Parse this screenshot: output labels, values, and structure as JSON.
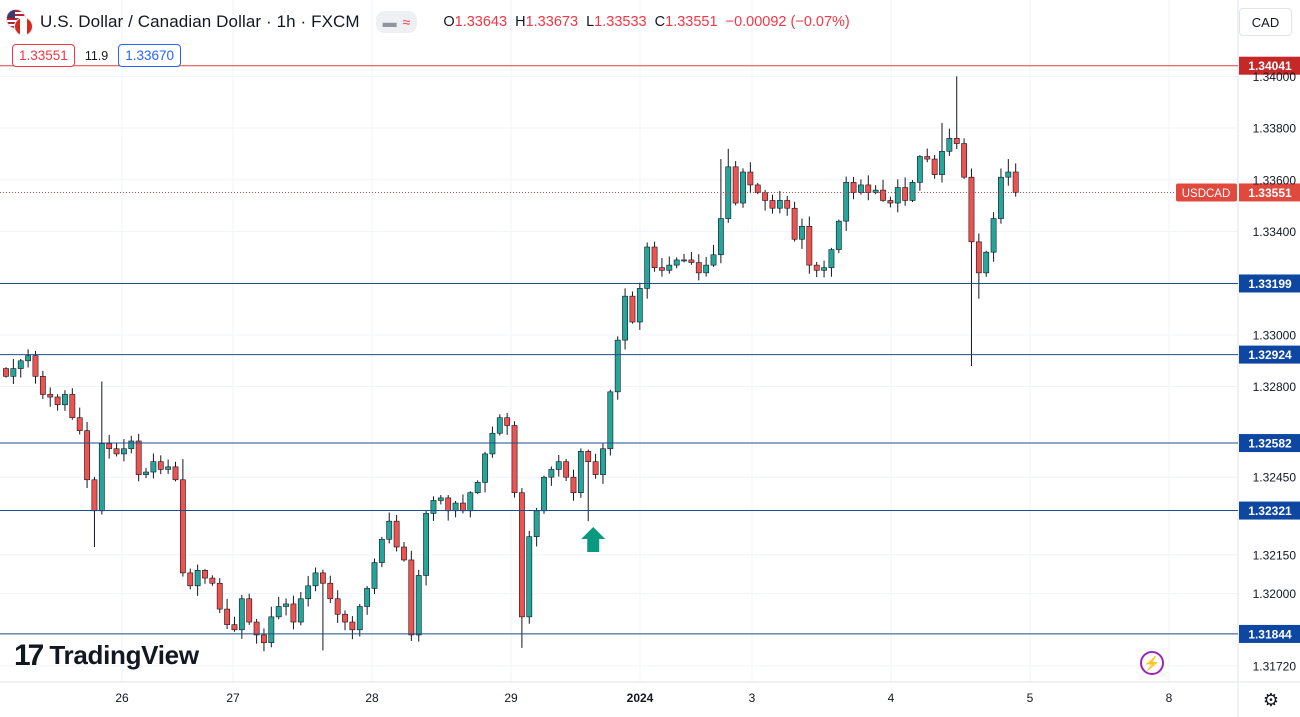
{
  "header": {
    "title": "U.S. Dollar / Canadian Dollar · 1h · FXCM",
    "toggle_minus": "▬",
    "toggle_wave": "≈",
    "open_label": "O",
    "open": "1.33643",
    "high_label": "H",
    "high": "1.33673",
    "low_label": "L",
    "low": "1.33533",
    "close_label": "C",
    "close": "1.33551",
    "change": "−0.00092 (−0.07%)"
  },
  "trade": {
    "sell_price": "1.33551",
    "spread": "11.9",
    "buy_price": "1.33670"
  },
  "currency_button": "CAD",
  "brand": {
    "name": "TradingView"
  },
  "icons": {
    "lightning": "lightning-icon",
    "settings": "gear-icon"
  },
  "colors": {
    "up": "#26a69a",
    "down": "#ef5350",
    "level_line": "#1e4d8c",
    "resistance": "#e04040",
    "arrow": "#089981",
    "last_price": "#e0493d"
  },
  "chart_data": {
    "type": "candlestick",
    "symbol": "USDCAD",
    "last_price": 1.33551,
    "y_ticks": [
      1.3172,
      1.32,
      1.3215,
      1.3245,
      1.328,
      1.33,
      1.334,
      1.336,
      1.338,
      1.34
    ],
    "y_tick_labels": [
      "1.31720",
      "1.32000",
      "1.32150",
      "1.32450",
      "1.32800",
      "1.33000",
      "1.33400",
      "1.33600",
      "1.33800",
      "1.34000"
    ],
    "x_labels": [
      {
        "label": "26",
        "date": "2023-12-26"
      },
      {
        "label": "27",
        "date": "2023-12-27"
      },
      {
        "label": "28",
        "date": "2023-12-28"
      },
      {
        "label": "29",
        "date": "2023-12-29"
      },
      {
        "label": "2024",
        "date": "2024-01-02"
      },
      {
        "label": "3",
        "date": "2024-01-03"
      },
      {
        "label": "4",
        "date": "2024-01-04"
      },
      {
        "label": "5",
        "date": "2024-01-05"
      },
      {
        "label": "8",
        "date": "2024-01-08"
      }
    ],
    "resistance_level": {
      "value": 1.34041,
      "label": "1.34041"
    },
    "levels": [
      {
        "value": 1.33199,
        "label": "1.33199"
      },
      {
        "value": 1.32924,
        "label": "1.32924"
      },
      {
        "value": 1.32582,
        "label": "1.32582"
      },
      {
        "value": 1.32321,
        "label": "1.32321"
      },
      {
        "value": 1.31844,
        "label": "1.31844"
      }
    ],
    "signal_arrow": {
      "direction": "up",
      "candle_index": 79
    },
    "closes": [
      1.3284,
      1.3287,
      1.329,
      1.3292,
      1.3284,
      1.3277,
      1.3276,
      1.3273,
      1.3277,
      1.3268,
      1.3263,
      1.3244,
      1.3232,
      1.3258,
      1.3256,
      1.3254,
      1.3256,
      1.3259,
      1.3246,
      1.3247,
      1.3251,
      1.3248,
      1.3249,
      1.3244,
      1.3208,
      1.3203,
      1.3209,
      1.3206,
      1.3204,
      1.3194,
      1.3188,
      1.3186,
      1.3198,
      1.3189,
      1.3184,
      1.3181,
      1.3191,
      1.3195,
      1.3196,
      1.3189,
      1.3198,
      1.3203,
      1.3208,
      1.3204,
      1.3198,
      1.3192,
      1.3189,
      1.3186,
      1.3195,
      1.3202,
      1.3212,
      1.3221,
      1.3228,
      1.3218,
      1.3213,
      1.3184,
      1.3207,
      1.3231,
      1.3236,
      1.3237,
      1.3232,
      1.3235,
      1.3232,
      1.3239,
      1.3243,
      1.3254,
      1.3262,
      1.3268,
      1.3265,
      1.3239,
      1.3191,
      1.3222,
      1.3232,
      1.3245,
      1.3248,
      1.3251,
      1.3245,
      1.3239,
      1.3255,
      1.3251,
      1.3246,
      1.3256,
      1.3278,
      1.3298,
      1.3315,
      1.3305,
      1.3318,
      1.3334,
      1.3326,
      1.3325,
      1.3327,
      1.3329,
      1.3329,
      1.3328,
      1.3324,
      1.3327,
      1.3331,
      1.3345,
      1.3365,
      1.3351,
      1.3363,
      1.3358,
      1.3355,
      1.3352,
      1.3349,
      1.3352,
      1.3349,
      1.3337,
      1.3342,
      1.3327,
      1.3325,
      1.3326,
      1.3333,
      1.3344,
      1.3359,
      1.3355,
      1.3358,
      1.3355,
      1.3356,
      1.3352,
      1.3351,
      1.3357,
      1.3352,
      1.3359,
      1.3369,
      1.3368,
      1.3362,
      1.3371,
      1.3376,
      1.3374,
      1.3361,
      1.3336,
      1.3324,
      1.3332,
      1.3345,
      1.3361,
      1.3363,
      1.33551
    ],
    "x_range": [
      0,
      135
    ],
    "y_range": [
      1.3165,
      1.3425
    ]
  }
}
